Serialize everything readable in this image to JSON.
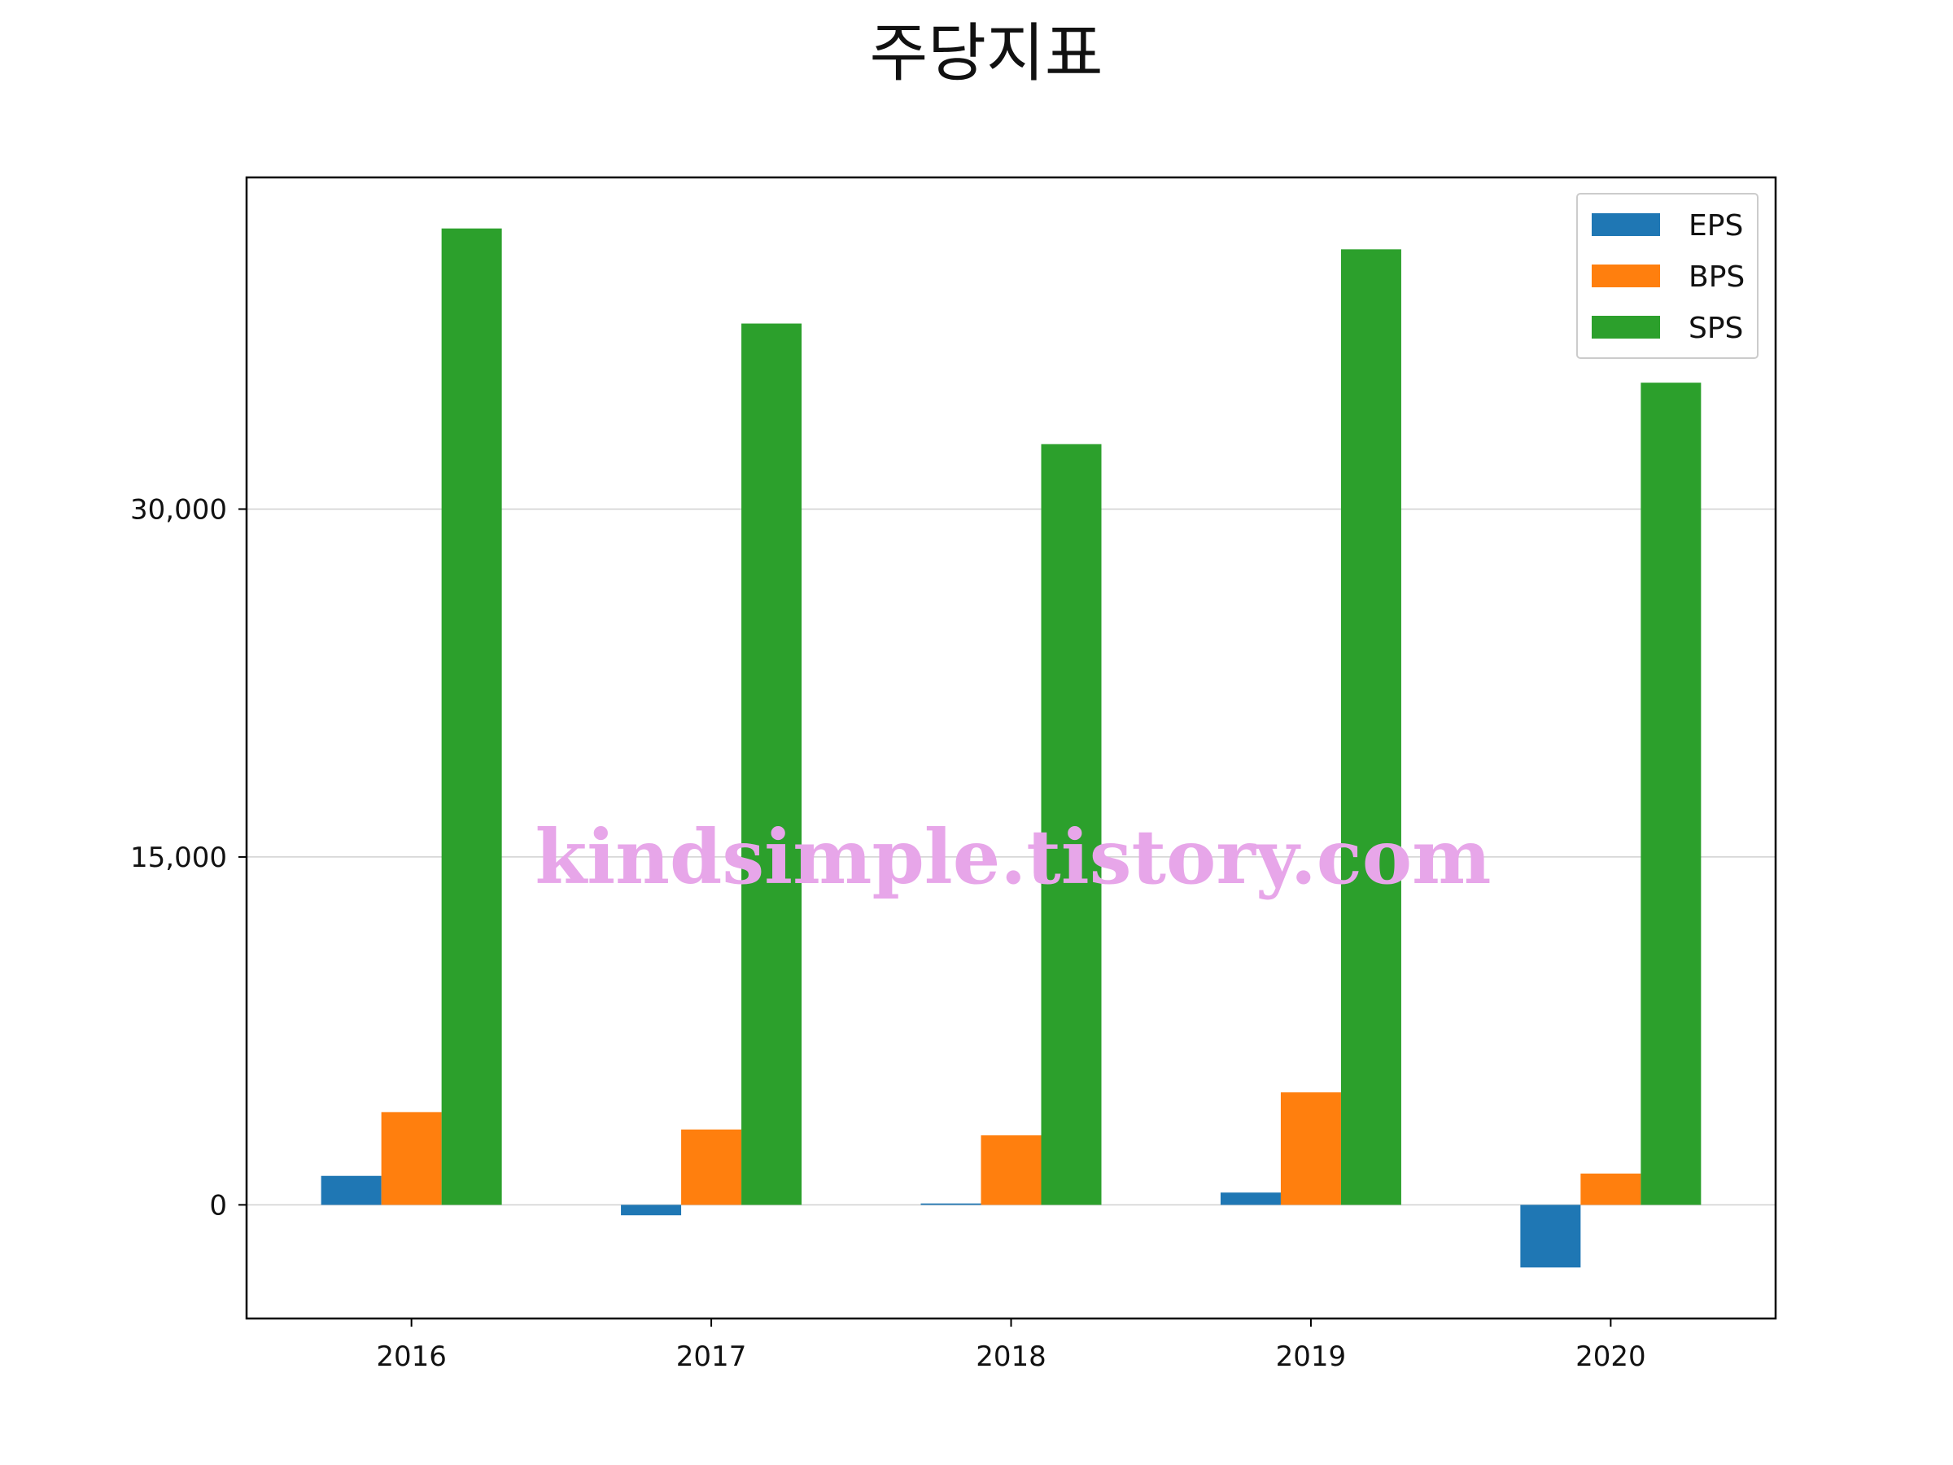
{
  "chart_data": {
    "type": "bar",
    "title": "주당지표",
    "categories": [
      "2016",
      "2017",
      "2018",
      "2019",
      "2020"
    ],
    "series": [
      {
        "name": "EPS",
        "color": "#1f77b4",
        "values": [
          1250,
          -450,
          60,
          530,
          -2700
        ]
      },
      {
        "name": "BPS",
        "color": "#ff7f0e",
        "values": [
          4000,
          3250,
          3000,
          4850,
          1350
        ]
      },
      {
        "name": "SPS",
        "color": "#2ca02c",
        "values": [
          42100,
          38000,
          32800,
          41200,
          35450
        ]
      }
    ],
    "ylim": [
      -4900,
      44300
    ],
    "yticks": [
      0,
      15000,
      30000
    ],
    "ytick_labels": [
      "0",
      "15,000",
      "30,000"
    ],
    "xlabel": "",
    "ylabel": "",
    "grid": "y",
    "legend": "top-right"
  },
  "watermark": {
    "text": "kindsimple.tistory.com",
    "color": "#e7a6e9"
  }
}
